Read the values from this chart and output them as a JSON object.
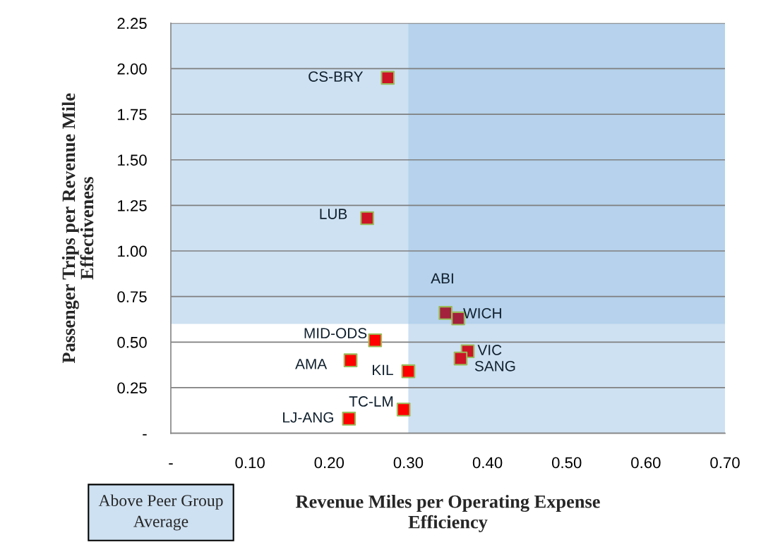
{
  "chart_data": {
    "type": "scatter",
    "xlabel": "Revenue Miles per Operating Expense\nEfficiency",
    "ylabel": "Passenger Trips per Revenue Mile\nEffectiveness",
    "x": [
      0.274,
      0.248,
      0.347,
      0.363,
      0.258,
      0.375,
      0.366,
      0.227,
      0.3,
      0.294,
      0.225
    ],
    "values": [
      1.95,
      1.18,
      0.66,
      0.63,
      0.51,
      0.45,
      0.41,
      0.4,
      0.34,
      0.13,
      0.08
    ],
    "colors": [
      "#cc1426",
      "#cc1426",
      "#a3213c",
      "#a3213c",
      "#ff0000",
      "#cc1426",
      "#cc1426",
      "#ff0000",
      "#ff0000",
      "#ff0000",
      "#ff0000"
    ],
    "marker": "square",
    "xlim": [
      0,
      0.7
    ],
    "ylim": [
      0,
      2.25
    ],
    "xticks": [
      {
        "value": 0,
        "label": "-"
      },
      {
        "value": 0.1,
        "label": "0.10"
      },
      {
        "value": 0.2,
        "label": "0.20"
      },
      {
        "value": 0.3,
        "label": "0.30"
      },
      {
        "value": 0.4,
        "label": "0.40"
      },
      {
        "value": 0.5,
        "label": "0.50"
      },
      {
        "value": 0.6,
        "label": "0.60"
      },
      {
        "value": 0.7,
        "label": "0.70"
      }
    ],
    "yticks": [
      {
        "value": 0,
        "label": "-"
      },
      {
        "value": 0.25,
        "label": "0.25"
      },
      {
        "value": 0.5,
        "label": "0.50"
      },
      {
        "value": 0.75,
        "label": "0.75"
      },
      {
        "value": 1.0,
        "label": "1.00"
      },
      {
        "value": 1.25,
        "label": "1.25"
      },
      {
        "value": 1.5,
        "label": "1.50"
      },
      {
        "value": 1.75,
        "label": "1.75"
      },
      {
        "value": 2.0,
        "label": "2.00"
      },
      {
        "value": 2.25,
        "label": "2.25"
      }
    ],
    "grid": "y",
    "bands": [
      {
        "axis": "x",
        "from": 0.3,
        "to": 0.7,
        "color": "#9dc3e6"
      },
      {
        "axis": "y",
        "from": 0.6,
        "to": 2.25,
        "color": "#9dc3e6"
      }
    ],
    "annotations": [
      {
        "text": "CS-BRY",
        "x": 0.274,
        "y": 1.95
      },
      {
        "text": "LUB",
        "x": 0.248,
        "y": 1.18
      },
      {
        "text": "ABI",
        "x": 0.347,
        "y": 0.66
      },
      {
        "text": "WICH",
        "x": 0.363,
        "y": 0.63
      },
      {
        "text": "MID-ODS",
        "x": 0.258,
        "y": 0.51
      },
      {
        "text": "VIC",
        "x": 0.375,
        "y": 0.45
      },
      {
        "text": "SANG",
        "x": 0.366,
        "y": 0.41
      },
      {
        "text": "AMA",
        "x": 0.227,
        "y": 0.4
      },
      {
        "text": "KIL",
        "x": 0.3,
        "y": 0.34
      },
      {
        "text": "TC-LM",
        "x": 0.294,
        "y": 0.13
      },
      {
        "text": "LJ-ANG",
        "x": 0.225,
        "y": 0.08
      },
      "Above Peer Group\nAverage"
    ]
  }
}
